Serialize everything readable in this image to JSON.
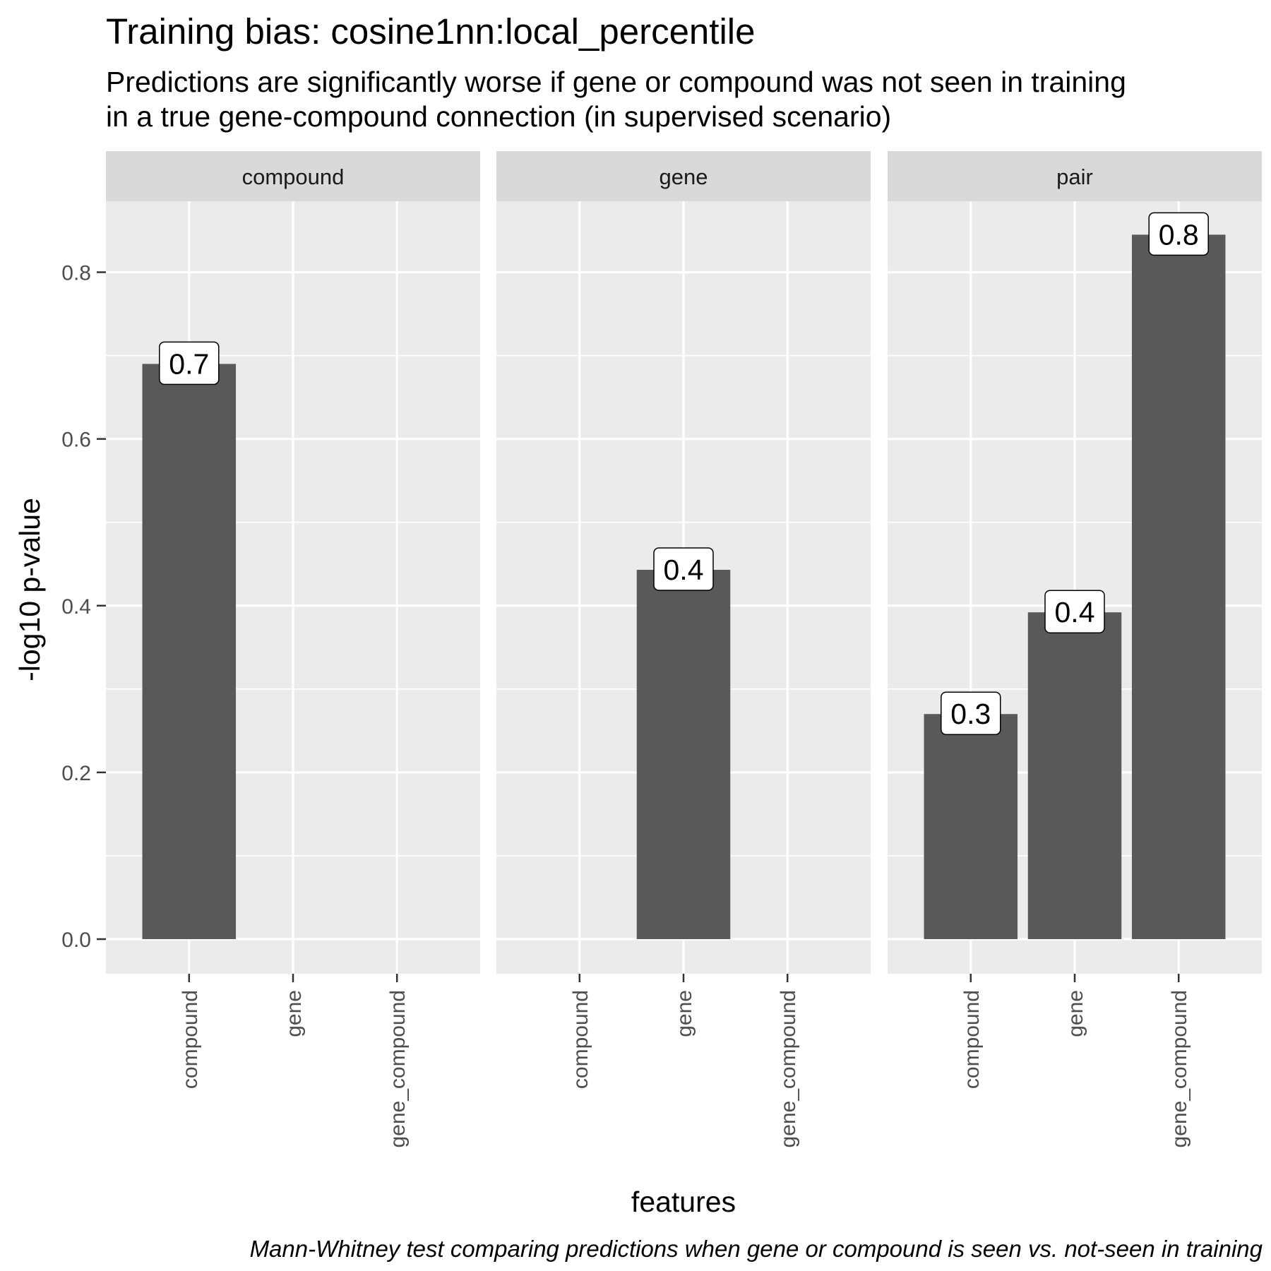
{
  "chart_data": {
    "type": "bar",
    "title": "Training bias: cosine1nn:local_percentile",
    "subtitle_lines": [
      "Predictions are significantly worse if gene or compound was not seen in training",
      "in a true gene-compound connection (in supervised scenario)"
    ],
    "xlabel": "features",
    "ylabel": "-log10 p-value",
    "caption": "Mann-Whitney test comparing predictions when gene or compound is seen vs. not-seen in training",
    "categories": [
      "compound",
      "gene",
      "gene_compound"
    ],
    "ylim": [
      -0.048,
      0.905
    ],
    "yticks": [
      0.0,
      0.2,
      0.4,
      0.6,
      0.8
    ],
    "ytick_labels": [
      "0.0",
      "0.2",
      "0.4",
      "0.6",
      "0.8"
    ],
    "grid": true,
    "bar_color": "#595959",
    "panel_background": "#ebebeb",
    "strip_background": "#d9d9d9",
    "facets": [
      {
        "name": "compound",
        "values": [
          0.69,
          null,
          null
        ],
        "labels": [
          "0.7",
          null,
          null
        ]
      },
      {
        "name": "gene",
        "values": [
          null,
          0.443,
          null
        ],
        "labels": [
          null,
          "0.4",
          null
        ]
      },
      {
        "name": "pair",
        "values": [
          0.27,
          0.392,
          0.845
        ],
        "labels": [
          "0.3",
          "0.4",
          "0.8"
        ]
      }
    ]
  }
}
